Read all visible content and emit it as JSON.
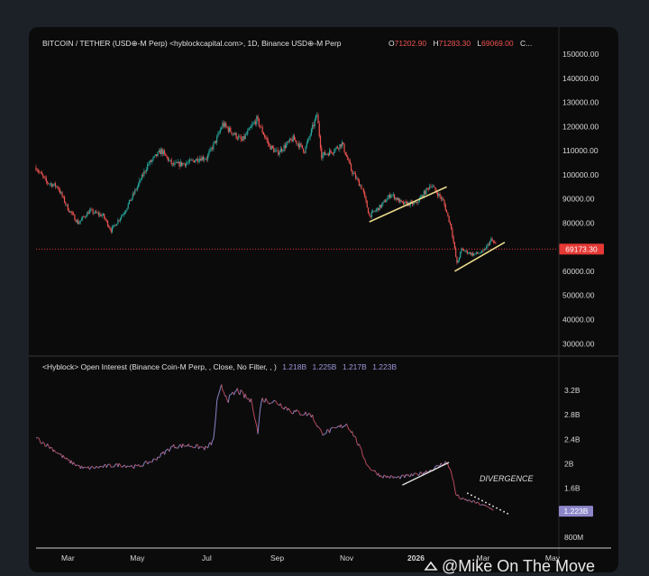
{
  "chart_data": [
    {
      "type": "candlestick",
      "header": {
        "symbol": "BITCOIN / TETHER (USD⊕-M Perp) <hyblockcapital.com>, 1D, Binance USD⊕-M Perp",
        "o_label": "O",
        "o_value": "71202.90",
        "h_label": "H",
        "h_value": "71283.30",
        "l_label": "L",
        "l_value": "69069.00",
        "c_label": "C..."
      },
      "ylim": [
        26000,
        151500
      ],
      "yticks": [
        "150000.00",
        "140000.00",
        "130000.00",
        "120000.00",
        "110000.00",
        "100000.00",
        "90000.00",
        "80000.00",
        "70000.00",
        "60000.00",
        "50000.00",
        "40000.00",
        "30000.00"
      ],
      "ytick_values": [
        150000,
        140000,
        130000,
        120000,
        110000,
        100000,
        90000,
        80000,
        70000,
        60000,
        50000,
        40000,
        30000
      ],
      "last_price": 69173.3,
      "last_price_label": "69173.30",
      "price_path": [
        [
          "2025-02-01",
          103000
        ],
        [
          "2025-02-10",
          97000
        ],
        [
          "2025-02-20",
          95000
        ],
        [
          "2025-03-01",
          86000
        ],
        [
          "2025-03-10",
          80000
        ],
        [
          "2025-03-20",
          85000
        ],
        [
          "2025-04-01",
          83000
        ],
        [
          "2025-04-08",
          77000
        ],
        [
          "2025-04-20",
          85000
        ],
        [
          "2025-05-01",
          95000
        ],
        [
          "2025-05-10",
          104000
        ],
        [
          "2025-05-22",
          110000
        ],
        [
          "2025-06-01",
          104000
        ],
        [
          "2025-06-15",
          105000
        ],
        [
          "2025-06-25",
          107000
        ],
        [
          "2025-07-01",
          107000
        ],
        [
          "2025-07-10",
          115000
        ],
        [
          "2025-07-15",
          121000
        ],
        [
          "2025-08-01",
          114000
        ],
        [
          "2025-08-14",
          123000
        ],
        [
          "2025-08-25",
          112000
        ],
        [
          "2025-09-01",
          109000
        ],
        [
          "2025-09-15",
          115000
        ],
        [
          "2025-09-25",
          110000
        ],
        [
          "2025-10-01",
          118000
        ],
        [
          "2025-10-06",
          125000
        ],
        [
          "2025-10-10",
          108000
        ],
        [
          "2025-10-20",
          110000
        ],
        [
          "2025-10-28",
          113000
        ],
        [
          "2025-11-05",
          102000
        ],
        [
          "2025-11-15",
          94000
        ],
        [
          "2025-11-21",
          83000
        ],
        [
          "2025-12-01",
          87000
        ],
        [
          "2025-12-10",
          92000
        ],
        [
          "2025-12-20",
          88000
        ],
        [
          "2026-01-01",
          88000
        ],
        [
          "2026-01-14",
          96000
        ],
        [
          "2026-01-25",
          89000
        ],
        [
          "2026-02-01",
          78000
        ],
        [
          "2026-02-06",
          63000
        ],
        [
          "2026-02-10",
          69000
        ],
        [
          "2026-02-20",
          67000
        ],
        [
          "2026-03-01",
          68000
        ],
        [
          "2026-03-08",
          73000
        ],
        [
          "2026-03-12",
          71000
        ]
      ],
      "trendlines": [
        {
          "start": [
            "2025-11-21",
            80500
          ],
          "end": [
            "2026-01-28",
            95000
          ],
          "color": "#e8d98a"
        },
        {
          "start": [
            "2026-02-04",
            60000
          ],
          "end": [
            "2026-03-20",
            72000
          ],
          "color": "#e8d98a"
        }
      ]
    },
    {
      "type": "line",
      "header": {
        "title": "<Hyblock> Open Interest (Binance Coin-M Perp, , Close, No Filter, , )",
        "v1": "1.218B",
        "v2": "1.225B",
        "v3": "1.217B",
        "v4": "1.223B"
      },
      "ylim": [
        0.65,
        3.45
      ],
      "yticks": [
        "3.2B",
        "2.8B",
        "2.4B",
        "2B",
        "1.6B",
        "800M"
      ],
      "ytick_values": [
        3.2,
        2.8,
        2.4,
        2.0,
        1.6,
        0.8
      ],
      "last_value": 1.223,
      "last_value_label": "1.223B",
      "series": [
        {
          "values": [
            [
              "2025-02-01",
              2.42
            ],
            [
              "2025-02-15",
              2.25
            ],
            [
              "2025-03-01",
              2.05
            ],
            [
              "2025-03-15",
              1.92
            ],
            [
              "2025-04-01",
              1.95
            ],
            [
              "2025-04-15",
              1.98
            ],
            [
              "2025-05-01",
              1.95
            ],
            [
              "2025-05-15",
              2.05
            ],
            [
              "2025-06-01",
              2.28
            ],
            [
              "2025-06-15",
              2.3
            ],
            [
              "2025-07-01",
              2.25
            ],
            [
              "2025-07-07",
              2.38
            ],
            [
              "2025-07-10",
              3.0
            ],
            [
              "2025-07-14",
              3.25
            ],
            [
              "2025-07-20",
              3.05
            ],
            [
              "2025-07-28",
              3.2
            ],
            [
              "2025-08-10",
              3.0
            ],
            [
              "2025-08-15",
              2.5
            ],
            [
              "2025-08-18",
              3.05
            ],
            [
              "2025-09-01",
              3.0
            ],
            [
              "2025-09-15",
              2.85
            ],
            [
              "2025-10-01",
              2.8
            ],
            [
              "2025-10-10",
              2.5
            ],
            [
              "2025-10-20",
              2.55
            ],
            [
              "2025-11-01",
              2.65
            ],
            [
              "2025-11-08",
              2.45
            ],
            [
              "2025-11-20",
              1.95
            ],
            [
              "2025-12-01",
              1.8
            ],
            [
              "2025-12-15",
              1.77
            ],
            [
              "2026-01-01",
              1.82
            ],
            [
              "2026-01-15",
              1.9
            ],
            [
              "2026-01-27",
              2.03
            ],
            [
              "2026-02-01",
              1.88
            ],
            [
              "2026-02-05",
              1.5
            ],
            [
              "2026-02-10",
              1.42
            ],
            [
              "2026-02-20",
              1.38
            ],
            [
              "2026-03-01",
              1.32
            ],
            [
              "2026-03-10",
              1.25
            ]
          ]
        }
      ],
      "trendlines": [
        {
          "start": [
            "2025-12-20",
            1.65
          ],
          "end": [
            "2026-01-30",
            2.02
          ],
          "color": "#e0e0e0",
          "style": "solid"
        },
        {
          "start": [
            "2026-02-15",
            1.52
          ],
          "end": [
            "2026-03-24",
            1.17
          ],
          "color": "#ffffff",
          "style": "dotted"
        }
      ],
      "annotations": [
        "DIVERGENCE"
      ]
    }
  ],
  "x_axis": {
    "labels": [
      "Mar",
      "May",
      "Jul",
      "Sep",
      "Nov",
      "2026",
      "Mar",
      "May"
    ],
    "dates": [
      "2025-03-01",
      "2025-05-01",
      "2025-07-01",
      "2025-09-01",
      "2025-11-01",
      "2026-01-01",
      "2026-03-01",
      "2026-05-01"
    ],
    "range": [
      "2025-02-01",
      "2026-05-05"
    ]
  },
  "colors": {
    "up": "#26a69a",
    "down": "#ef5350",
    "price_tag": "#e53935",
    "oi_tag": "#8c86c9",
    "oi_up": "#8a86c6",
    "oi_down": "#b84a5a",
    "trend": "#e8d98a"
  },
  "watermark": "@Mike On The Move"
}
